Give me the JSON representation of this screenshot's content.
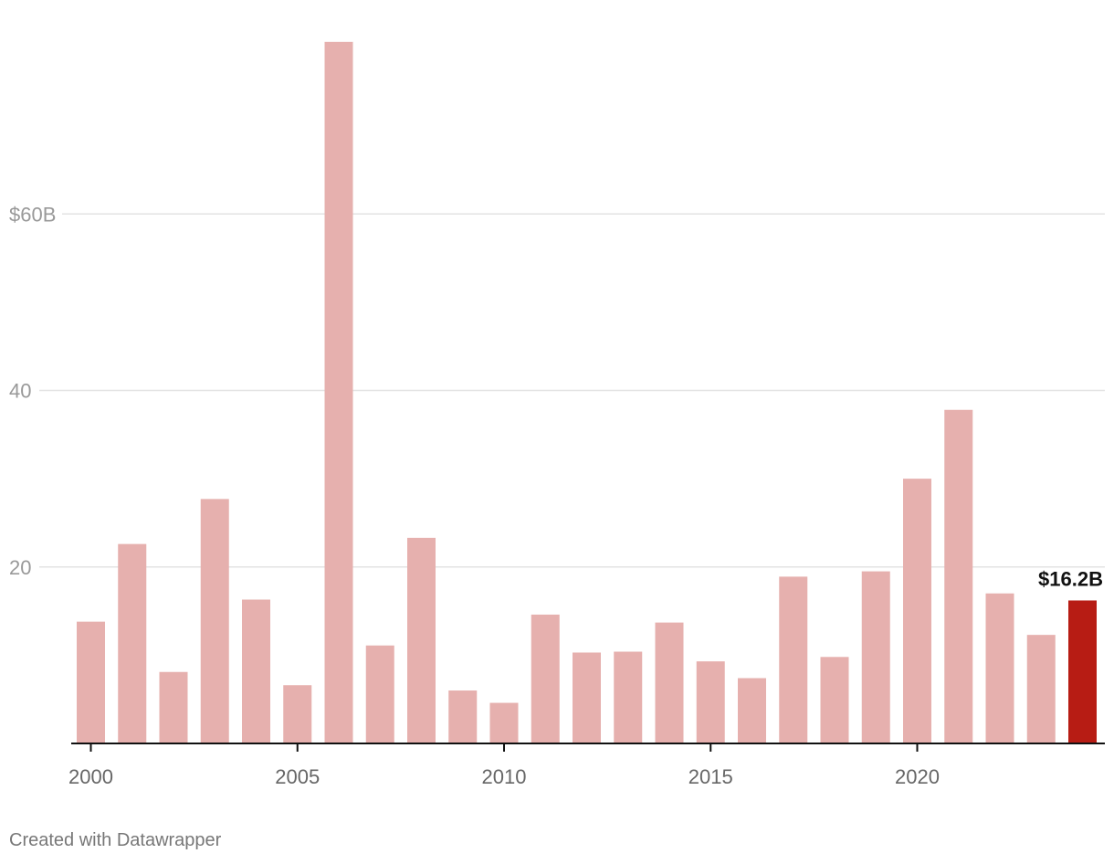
{
  "chart_data": {
    "type": "bar",
    "title": "",
    "xlabel": "",
    "ylabel": "",
    "categories": [
      2000,
      2001,
      2002,
      2003,
      2004,
      2005,
      2006,
      2007,
      2008,
      2009,
      2010,
      2011,
      2012,
      2013,
      2014,
      2015,
      2016,
      2017,
      2018,
      2019,
      2020,
      2021,
      2022,
      2023,
      2024
    ],
    "values": [
      13.8,
      22.6,
      8.1,
      27.7,
      16.3,
      6.6,
      79.5,
      11.1,
      23.3,
      6.0,
      4.6,
      14.6,
      10.3,
      10.4,
      13.7,
      9.3,
      7.4,
      18.9,
      9.8,
      19.5,
      30.0,
      37.8,
      17.0,
      12.3,
      16.2
    ],
    "ylim": [
      0,
      80
    ],
    "y_ticks": [
      {
        "value": 20,
        "label": "20"
      },
      {
        "value": 40,
        "label": "40"
      },
      {
        "value": 60,
        "label": "$60B"
      }
    ],
    "x_ticks": [
      {
        "value": 2000,
        "label": "2000"
      },
      {
        "value": 2005,
        "label": "2005"
      },
      {
        "value": 2010,
        "label": "2010"
      },
      {
        "value": 2015,
        "label": "2015"
      },
      {
        "value": 2020,
        "label": "2020"
      }
    ],
    "highlight": {
      "category": 2024,
      "label": "$16.2B"
    },
    "colors": {
      "bar": "#e6b0ae",
      "highlight": "#b71c14"
    },
    "grid": true,
    "legend": "none"
  },
  "footer": {
    "credit": "Created with Datawrapper"
  }
}
